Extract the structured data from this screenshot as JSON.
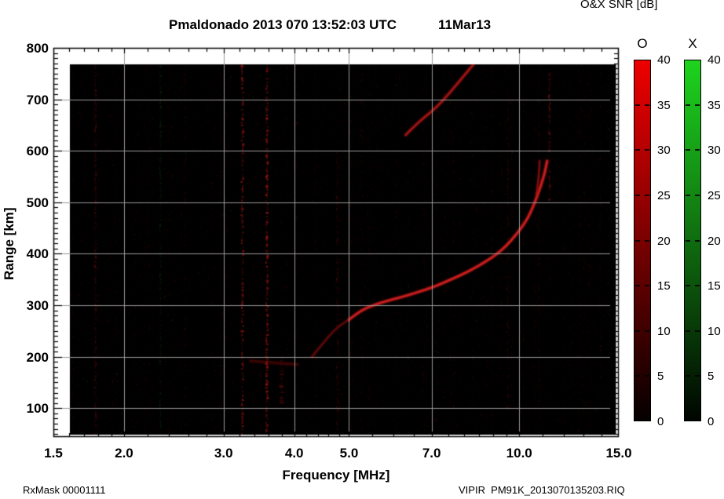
{
  "header": {
    "title": "Pmaldonado 2013 070 13:52:03 UTC",
    "date": "11Mar13",
    "colorbar_title": "O&X SNR [dB]"
  },
  "footer": {
    "left": "RxMask 00001111",
    "right": "VIPIR  PM91K_2013070135203.RIQ"
  },
  "chart_data": {
    "type": "heatmap",
    "title": "Pmaldonado 2013 070 13:52:03 UTC",
    "date_label": "11Mar13",
    "xlabel": "Frequency [MHz]",
    "ylabel": "Range [km]",
    "x_scale": "log",
    "xlim": [
      1.5,
      15.0
    ],
    "ylim": [
      44,
      800
    ],
    "x_ticks": [
      1.5,
      2.0,
      3.0,
      4.0,
      5.0,
      7.0,
      10.0,
      15.0
    ],
    "x_tick_labels": [
      "1.5",
      "2.0",
      "3.0",
      "4.0",
      "5.0",
      "7.0",
      "10.0",
      "15.0"
    ],
    "x_minor_ticks": [
      1.6,
      1.7,
      1.8,
      1.9,
      2.2,
      2.4,
      2.6,
      2.8,
      3.2,
      3.4,
      3.6,
      3.8,
      4.2,
      4.4,
      4.6,
      4.8,
      5.5,
      6.0,
      6.5,
      7.5,
      8.0,
      8.5,
      9.0,
      9.5,
      11.0,
      12.0,
      13.0,
      14.0
    ],
    "y_ticks": [
      100,
      200,
      300,
      400,
      500,
      600,
      700,
      800
    ],
    "y_minor_step": 10,
    "grid": true,
    "grid_color": "#9a9a9a",
    "data_bg": "#000000",
    "data_extent": {
      "freq": [
        1.604,
        14.83
      ],
      "range": [
        48.5,
        767.9
      ]
    },
    "colorbar_units": "dB",
    "colorbars": [
      {
        "label": "O",
        "min": 0,
        "max": 40,
        "ticks": [
          0,
          5,
          10,
          15,
          20,
          25,
          30,
          35,
          40
        ],
        "color_top": "#ee0000",
        "color_bottom": "#050000"
      },
      {
        "label": "X",
        "min": 0,
        "max": 40,
        "ticks": [
          0,
          5,
          10,
          15,
          20,
          25,
          30,
          35,
          40
        ],
        "color_top": "#1ed41e",
        "color_bottom": "#000500"
      }
    ],
    "series": [
      {
        "name": "F-region O-mode main trace",
        "intensity": 1.0,
        "width": 3,
        "color": "#d42020",
        "points": [
          [
            5.0,
            272
          ],
          [
            5.2,
            287
          ],
          [
            5.45,
            298
          ],
          [
            5.7,
            305
          ],
          [
            6.0,
            312
          ],
          [
            6.3,
            318
          ],
          [
            6.6,
            325
          ],
          [
            7.0,
            334
          ],
          [
            7.4,
            345
          ],
          [
            7.9,
            359
          ],
          [
            8.3,
            371
          ],
          [
            8.7,
            384
          ],
          [
            9.1,
            398
          ],
          [
            9.5,
            416
          ],
          [
            9.8,
            433
          ],
          [
            10.1,
            451
          ],
          [
            10.35,
            469
          ],
          [
            10.55,
            488
          ],
          [
            10.75,
            511
          ],
          [
            10.95,
            536
          ],
          [
            11.1,
            558
          ],
          [
            11.2,
            580
          ]
        ]
      },
      {
        "name": "F-trace faint lower tail",
        "intensity": 0.45,
        "width": 2.5,
        "color": "#a81414",
        "points": [
          [
            4.3,
            200
          ],
          [
            4.42,
            216
          ],
          [
            4.55,
            233
          ],
          [
            4.68,
            248
          ],
          [
            4.82,
            261
          ],
          [
            5.0,
            272
          ]
        ]
      },
      {
        "name": "upper second trace",
        "intensity": 0.75,
        "width": 3,
        "color": "#c51b1b",
        "points": [
          [
            6.3,
            631
          ],
          [
            6.65,
            657
          ],
          [
            7.0,
            676
          ],
          [
            7.35,
            699
          ],
          [
            7.7,
            725
          ],
          [
            8.0,
            747
          ],
          [
            8.3,
            768
          ]
        ]
      },
      {
        "name": "fork branch near cutoff",
        "intensity": 0.65,
        "width": 2,
        "color": "#b81717",
        "points": [
          [
            10.72,
            515
          ],
          [
            10.82,
            545
          ],
          [
            10.87,
            580
          ]
        ]
      },
      {
        "name": "E-region faint echo",
        "intensity": 0.28,
        "width": 3.5,
        "color": "#991111",
        "points": [
          [
            3.35,
            192
          ],
          [
            3.7,
            188
          ],
          [
            4.05,
            185
          ]
        ]
      }
    ],
    "rfi_stripes": [
      {
        "freq": 1.78,
        "range": [
          48,
          767
        ],
        "alpha": 0.3,
        "width": 2.5,
        "color": "#8b1111"
      },
      {
        "freq": 2.32,
        "range": [
          48,
          767
        ],
        "alpha": 0.16,
        "width": 2,
        "color": "#1d7a1d"
      },
      {
        "freq": 3.24,
        "range": [
          48,
          767
        ],
        "alpha": 0.55,
        "width": 3,
        "color": "#a01616"
      },
      {
        "freq": 3.58,
        "range": [
          48,
          767
        ],
        "alpha": 0.6,
        "width": 3.5,
        "color": "#a81616"
      },
      {
        "freq": 3.8,
        "range": [
          110,
          200
        ],
        "alpha": 0.35,
        "width": 6,
        "color": "#8b1111"
      },
      {
        "freq": 4.77,
        "range": [
          60,
          600
        ],
        "alpha": 0.26,
        "width": 2,
        "color": "#8b1111"
      },
      {
        "freq": 9.55,
        "range": [
          100,
          720
        ],
        "alpha": 0.2,
        "width": 2,
        "color": "#8b1111"
      },
      {
        "freq": 11.32,
        "range": [
          500,
          760
        ],
        "alpha": 0.38,
        "width": 2.5,
        "color": "#9c1414"
      }
    ],
    "noise": {
      "seed": 20130311,
      "specks": 9000,
      "columns": 140,
      "red": [
        122,
        14,
        14
      ],
      "green": [
        29,
        107,
        29
      ],
      "green_fraction": 0.05
    }
  }
}
